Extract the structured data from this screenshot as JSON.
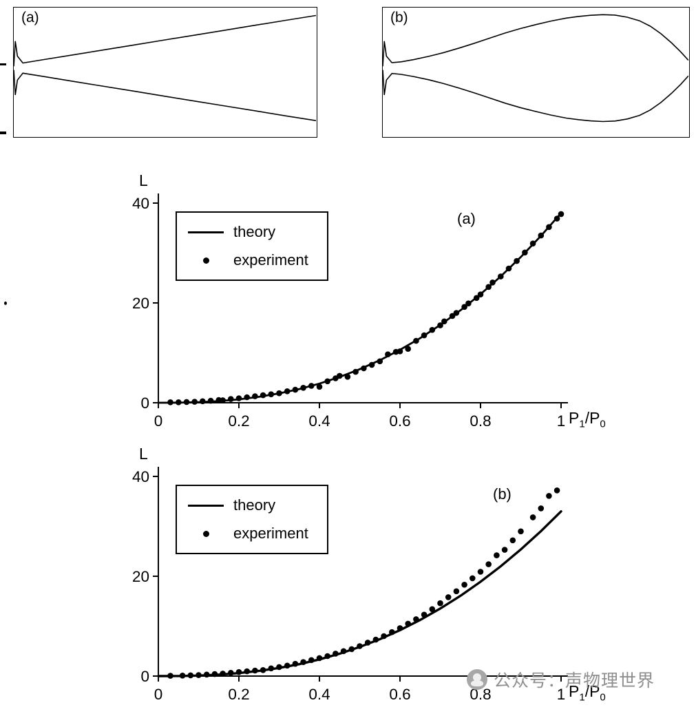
{
  "panels": [
    {
      "label": "(a)",
      "envelope": [
        [
          0,
          0.03
        ],
        [
          0.005,
          0.45
        ],
        [
          0.012,
          0.2
        ],
        [
          0.03,
          0.085
        ],
        [
          0.1,
          0.142
        ],
        [
          0.2,
          0.224
        ],
        [
          0.3,
          0.306
        ],
        [
          0.4,
          0.388
        ],
        [
          0.5,
          0.47
        ],
        [
          0.6,
          0.552
        ],
        [
          0.7,
          0.634
        ],
        [
          0.8,
          0.716
        ],
        [
          0.9,
          0.798
        ],
        [
          1,
          0.878
        ]
      ]
    },
    {
      "label": "(b)",
      "envelope": [
        [
          0,
          0.03
        ],
        [
          0.005,
          0.45
        ],
        [
          0.012,
          0.2
        ],
        [
          0.03,
          0.09
        ],
        [
          0.06,
          0.105
        ],
        [
          0.1,
          0.14
        ],
        [
          0.15,
          0.195
        ],
        [
          0.2,
          0.26
        ],
        [
          0.25,
          0.335
        ],
        [
          0.3,
          0.415
        ],
        [
          0.35,
          0.5
        ],
        [
          0.4,
          0.585
        ],
        [
          0.45,
          0.66
        ],
        [
          0.5,
          0.725
        ],
        [
          0.55,
          0.785
        ],
        [
          0.6,
          0.835
        ],
        [
          0.64,
          0.862
        ],
        [
          0.68,
          0.882
        ],
        [
          0.72,
          0.892
        ],
        [
          0.76,
          0.885
        ],
        [
          0.8,
          0.85
        ],
        [
          0.84,
          0.79
        ],
        [
          0.875,
          0.7
        ],
        [
          0.91,
          0.575
        ],
        [
          0.945,
          0.42
        ],
        [
          0.975,
          0.27
        ],
        [
          1,
          0.13
        ]
      ]
    }
  ],
  "chart_data": [
    {
      "type": "line+scatter",
      "panel_label": "(a)",
      "ylabel": "L",
      "xlabel_parts": [
        "P",
        "1",
        "/P",
        "0"
      ],
      "xlim": [
        0,
        1
      ],
      "ylim": [
        0,
        40
      ],
      "xticks": [
        0,
        0.2,
        0.4,
        0.6,
        0.8,
        1
      ],
      "xtick_labels": [
        "0",
        "0.2",
        "0.4",
        "0.6",
        "0.8",
        "1"
      ],
      "yticks": [
        0,
        20,
        40
      ],
      "ytick_labels": [
        "0",
        "20",
        "40"
      ],
      "grid": false,
      "legend_position": "upper-left",
      "line_width": 2.8,
      "dot_radius": 4.3,
      "legend": [
        {
          "type": "line",
          "label": "theory"
        },
        {
          "type": "dot",
          "label": "experiment"
        }
      ],
      "series": [
        {
          "name": "theory",
          "type": "line",
          "x": [
            0,
            0.05,
            0.1,
            0.15,
            0.2,
            0.25,
            0.3,
            0.35,
            0.4,
            0.45,
            0.5,
            0.55,
            0.6,
            0.65,
            0.7,
            0.75,
            0.8,
            0.85,
            0.9,
            0.95,
            1
          ],
          "y": [
            0,
            0.02,
            0.12,
            0.33,
            0.68,
            1.19,
            1.87,
            2.75,
            3.84,
            5.16,
            6.72,
            8.52,
            10.6,
            12.94,
            15.58,
            18.51,
            21.75,
            25.31,
            29.2,
            33.43,
            38
          ]
        },
        {
          "name": "experiment",
          "type": "scatter",
          "x": [
            0.03,
            0.05,
            0.07,
            0.09,
            0.11,
            0.13,
            0.15,
            0.16,
            0.18,
            0.2,
            0.22,
            0.24,
            0.26,
            0.28,
            0.3,
            0.32,
            0.34,
            0.36,
            0.38,
            0.4,
            0.42,
            0.44,
            0.45,
            0.47,
            0.49,
            0.51,
            0.53,
            0.55,
            0.57,
            0.59,
            0.6,
            0.62,
            0.64,
            0.66,
            0.68,
            0.7,
            0.71,
            0.73,
            0.74,
            0.76,
            0.77,
            0.79,
            0.8,
            0.82,
            0.83,
            0.85,
            0.87,
            0.89,
            0.91,
            0.93,
            0.95,
            0.97,
            0.99,
            1
          ],
          "y": [
            0.1,
            0.1,
            0.15,
            0.2,
            0.3,
            0.4,
            0.55,
            0.5,
            0.75,
            0.9,
            1.1,
            1.3,
            1.5,
            1.7,
            1.9,
            2.3,
            2.6,
            3,
            3.4,
            3.2,
            4.3,
            4.9,
            5.4,
            5.2,
            6.2,
            6.9,
            7.6,
            8.3,
            9.7,
            10.2,
            10.3,
            10.8,
            12.4,
            13.5,
            14.6,
            15.5,
            16.3,
            17.4,
            18,
            19.2,
            19.9,
            21,
            21.7,
            23.2,
            24.1,
            25.3,
            26.9,
            28.4,
            30.1,
            31.9,
            33.5,
            35.2,
            36.9,
            37.8
          ]
        }
      ]
    },
    {
      "type": "line+scatter",
      "panel_label": "(b)",
      "ylabel": "L",
      "xlabel_parts": [
        "P",
        "1",
        "/P",
        "0"
      ],
      "xlim": [
        0,
        1
      ],
      "ylim": [
        0,
        40
      ],
      "xticks": [
        0,
        0.2,
        0.4,
        0.6,
        0.8,
        1
      ],
      "xtick_labels": [
        "0",
        "0.2",
        "0.4",
        "0.6",
        "0.8",
        "1"
      ],
      "yticks": [
        0,
        20,
        40
      ],
      "ytick_labels": [
        "0",
        "20",
        "40"
      ],
      "grid": false,
      "legend_position": "upper-left",
      "line_width": 3.4,
      "dot_radius": 4.3,
      "legend": [
        {
          "type": "line",
          "label": "theory"
        },
        {
          "type": "dot",
          "label": "experiment"
        }
      ],
      "series": [
        {
          "name": "theory",
          "type": "line",
          "x": [
            0,
            0.05,
            0.1,
            0.15,
            0.2,
            0.25,
            0.3,
            0.35,
            0.4,
            0.45,
            0.5,
            0.55,
            0.6,
            0.65,
            0.7,
            0.75,
            0.8,
            0.85,
            0.9,
            0.95,
            1
          ],
          "y": [
            0,
            0.02,
            0.1,
            0.29,
            0.59,
            1.03,
            1.63,
            2.39,
            3.34,
            4.48,
            5.83,
            7.4,
            9.2,
            11.24,
            13.53,
            16.07,
            18.89,
            21.98,
            25.36,
            29.03,
            33
          ]
        },
        {
          "name": "experiment",
          "type": "scatter",
          "x": [
            0.03,
            0.06,
            0.08,
            0.1,
            0.12,
            0.14,
            0.16,
            0.18,
            0.2,
            0.22,
            0.24,
            0.26,
            0.28,
            0.3,
            0.32,
            0.34,
            0.36,
            0.38,
            0.4,
            0.42,
            0.44,
            0.46,
            0.48,
            0.5,
            0.52,
            0.54,
            0.56,
            0.58,
            0.6,
            0.62,
            0.64,
            0.66,
            0.68,
            0.7,
            0.72,
            0.74,
            0.76,
            0.78,
            0.8,
            0.82,
            0.84,
            0.86,
            0.88,
            0.9,
            0.93,
            0.95,
            0.97,
            0.99
          ],
          "y": [
            0.05,
            0.1,
            0.15,
            0.2,
            0.3,
            0.4,
            0.5,
            0.65,
            0.8,
            0.95,
            1.1,
            1.2,
            1.55,
            1.8,
            2.1,
            2.45,
            2.8,
            3.2,
            3.6,
            4,
            4.5,
            5,
            5.4,
            6,
            6.7,
            7.3,
            8,
            8.8,
            9.6,
            10.5,
            11.4,
            12.3,
            13.4,
            14.6,
            15.8,
            17,
            18.3,
            19.6,
            20.9,
            22.4,
            24.2,
            25.3,
            27.2,
            29,
            31.8,
            33.6,
            36.1,
            37.2
          ]
        }
      ]
    }
  ],
  "watermark": {
    "icon": "wechat-official-account-logo",
    "text": "公众号：声物理世界",
    "color": "#8f8f8f"
  }
}
